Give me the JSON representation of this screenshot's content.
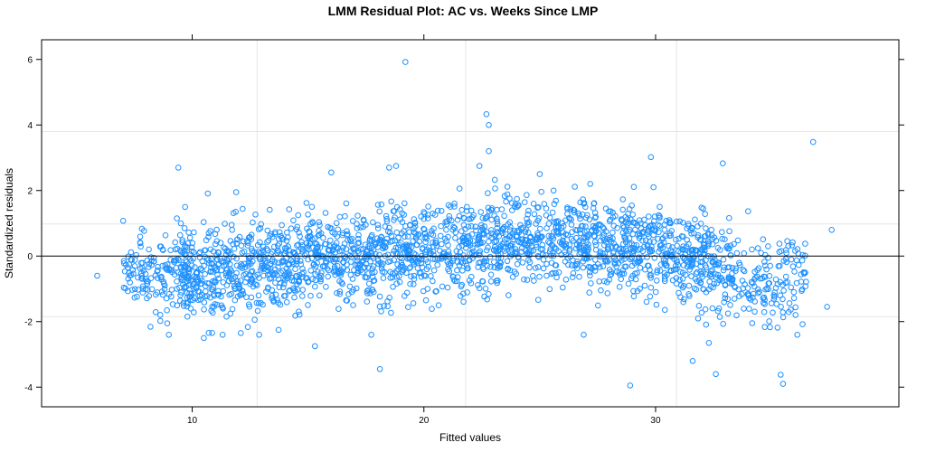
{
  "chart_data": {
    "type": "scatter",
    "title": "LMM Residual Plot: AC vs. Weeks Since LMP",
    "xlabel": "Fitted values",
    "ylabel": "Standardized residuals",
    "xlim": [
      3.5,
      40.5
    ],
    "ylim": [
      -4.6,
      6.6
    ],
    "x_ticks": [
      10,
      20,
      30
    ],
    "y_ticks": [
      -4,
      -2,
      0,
      2,
      4,
      6
    ],
    "x_grid": [
      12.8,
      21.8,
      30.9
    ],
    "y_grid": [
      -1.85,
      0.98,
      3.8
    ],
    "reference_line_y": 0,
    "grid": true,
    "point_color": "#1e90ff",
    "marker": "open-circle",
    "n_points_approx": 2400,
    "notable_points": [
      {
        "x": 5.9,
        "y": -0.6
      },
      {
        "x": 9.4,
        "y": 2.7
      },
      {
        "x": 10.5,
        "y": -2.5
      },
      {
        "x": 11.9,
        "y": 1.95
      },
      {
        "x": 12.1,
        "y": -2.35
      },
      {
        "x": 15.3,
        "y": -2.75
      },
      {
        "x": 16.0,
        "y": 2.55
      },
      {
        "x": 18.1,
        "y": -3.45
      },
      {
        "x": 18.5,
        "y": 2.7
      },
      {
        "x": 18.8,
        "y": 2.75
      },
      {
        "x": 19.2,
        "y": 5.92
      },
      {
        "x": 22.7,
        "y": 4.33
      },
      {
        "x": 22.8,
        "y": 4.0
      },
      {
        "x": 22.8,
        "y": 3.2
      },
      {
        "x": 22.4,
        "y": 2.75
      },
      {
        "x": 25.0,
        "y": 2.5
      },
      {
        "x": 26.9,
        "y": -2.4
      },
      {
        "x": 28.9,
        "y": -3.95
      },
      {
        "x": 29.8,
        "y": 3.02
      },
      {
        "x": 31.6,
        "y": -3.2
      },
      {
        "x": 32.3,
        "y": -2.65
      },
      {
        "x": 32.6,
        "y": -3.6
      },
      {
        "x": 32.9,
        "y": 2.83
      },
      {
        "x": 35.4,
        "y": -3.62
      },
      {
        "x": 35.5,
        "y": -3.9
      },
      {
        "x": 36.8,
        "y": 3.48
      },
      {
        "x": 37.4,
        "y": -1.55
      },
      {
        "x": 37.6,
        "y": 0.8
      }
    ],
    "bulk_distribution": {
      "x_range": [
        7.0,
        36.5
      ],
      "residual_mean_by_x": [
        [
          7,
          -0.45
        ],
        [
          10,
          -0.55
        ],
        [
          13,
          -0.3
        ],
        [
          16,
          -0.05
        ],
        [
          19,
          0.15
        ],
        [
          22,
          0.35
        ],
        [
          25,
          0.5
        ],
        [
          28,
          0.4
        ],
        [
          31,
          0.0
        ],
        [
          34,
          -0.65
        ],
        [
          36.5,
          -0.9
        ]
      ],
      "residual_sd": 0.7
    }
  }
}
